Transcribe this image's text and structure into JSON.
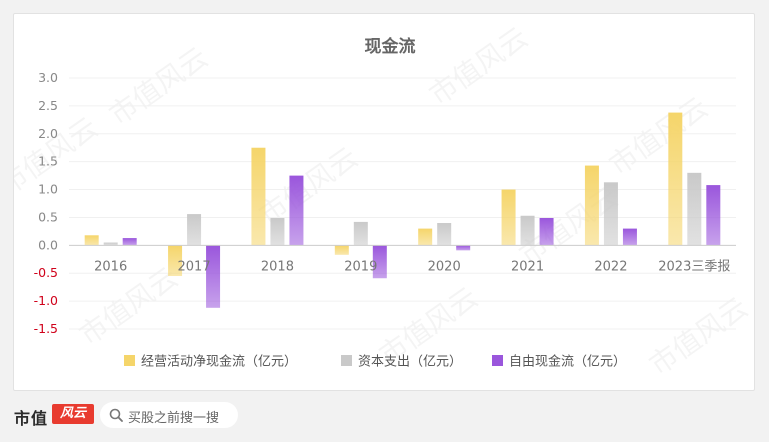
{
  "colors": {
    "operating": "#f5d56a",
    "capex": "#c9c9c9",
    "free": "#9a56dc",
    "negative_tick": "#d0021b",
    "tick": "#888888",
    "title": "#666666"
  },
  "chart_data": {
    "type": "bar",
    "title": "现金流",
    "categories": [
      "2016",
      "2017",
      "2018",
      "2019",
      "2020",
      "2021",
      "2022",
      "2023三季报"
    ],
    "series": [
      {
        "name": "经营活动净现金流（亿元）",
        "values": [
          0.18,
          -0.55,
          1.75,
          -0.17,
          0.3,
          1.0,
          1.43,
          2.38
        ]
      },
      {
        "name": "资本支出（亿元）",
        "values": [
          0.05,
          0.56,
          0.49,
          0.42,
          0.4,
          0.53,
          1.13,
          1.3
        ]
      },
      {
        "name": "自由现金流（亿元）",
        "values": [
          0.13,
          -1.12,
          1.25,
          -0.59,
          -0.09,
          0.49,
          0.3,
          1.08
        ]
      }
    ],
    "yticks": [
      "3.0",
      "2.5",
      "2.0",
      "1.5",
      "1.0",
      "0.5",
      "0.0",
      "-0.5",
      "-1.0",
      "-1.5"
    ],
    "ylim": [
      -1.5,
      3.0
    ],
    "grid": true,
    "legend_position": "bottom"
  },
  "watermark": "市值风云",
  "footer": {
    "logo_text": "市值",
    "logo_badge": "风云",
    "search_placeholder": "买股之前搜一搜"
  }
}
